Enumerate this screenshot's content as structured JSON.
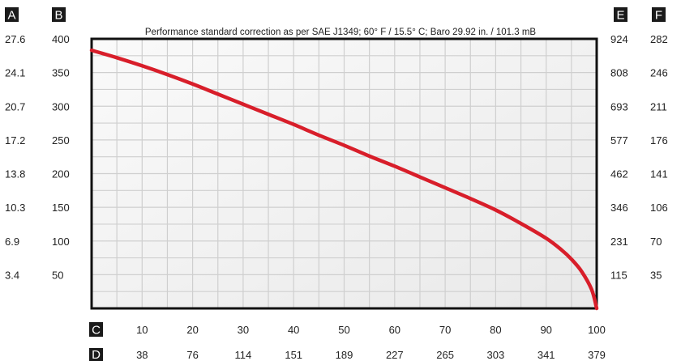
{
  "chart_data": {
    "type": "line",
    "title": "Performance standard correction as per SAE J1349;  60° F / 15.5° C;  Baro 29.92 in. / 101.3 mB",
    "axis_badges": {
      "A": "A",
      "B": "B",
      "C": "C",
      "D": "D",
      "E": "E",
      "F": "F"
    },
    "axis_A_ticks": [
      "27.6",
      "24.1",
      "20.7",
      "17.2",
      "13.8",
      "10.3",
      "6.9",
      "3.4"
    ],
    "axis_B_ticks": [
      "400",
      "350",
      "300",
      "250",
      "200",
      "150",
      "100",
      "50"
    ],
    "axis_E_ticks": [
      "924",
      "808",
      "693",
      "577",
      "462",
      "346",
      "231",
      "115"
    ],
    "axis_F_ticks": [
      "282",
      "246",
      "211",
      "176",
      "141",
      "106",
      "70",
      "35"
    ],
    "axis_C_ticks": [
      "10",
      "20",
      "30",
      "40",
      "50",
      "60",
      "70",
      "80",
      "90",
      "100"
    ],
    "axis_D_ticks": [
      "38",
      "76",
      "114",
      "151",
      "189",
      "227",
      "265",
      "303",
      "341",
      "379"
    ],
    "xlim": [
      0,
      100
    ],
    "ylim": [
      0,
      400
    ],
    "grid": true,
    "series": [
      {
        "color": "#d81e2a",
        "x": [
          0,
          5,
          10,
          15,
          20,
          25,
          30,
          35,
          40,
          45,
          50,
          55,
          60,
          65,
          70,
          75,
          80,
          85,
          90,
          93,
          95,
          97,
          99,
          100
        ],
        "y": [
          383,
          372,
          360,
          347,
          333,
          318,
          303,
          288,
          273,
          257,
          242,
          226,
          211,
          195,
          179,
          163,
          146,
          126,
          104,
          87,
          73,
          55,
          28,
          0
        ]
      }
    ]
  }
}
